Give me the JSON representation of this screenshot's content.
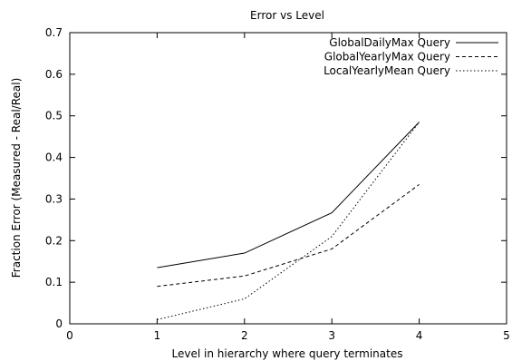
{
  "chart_data": {
    "type": "line",
    "title": "Error vs Level",
    "xlabel": "Level in hierarchy where query terminates",
    "ylabel": "Fraction Error (Measured - Real/Real)",
    "xlim": [
      0,
      5
    ],
    "ylim": [
      0,
      0.7
    ],
    "xticks": [
      "0",
      "1",
      "2",
      "3",
      "4",
      "5"
    ],
    "yticks": [
      "0",
      "0.1",
      "0.2",
      "0.3",
      "0.4",
      "0.5",
      "0.6",
      "0.7"
    ],
    "grid": false,
    "legend_position": "top-right",
    "x": [
      1,
      2,
      3,
      4
    ],
    "series": [
      {
        "name": "GlobalDailyMax Query",
        "style": "solid",
        "values": [
          0.135,
          0.17,
          0.267,
          0.485
        ]
      },
      {
        "name": "GlobalYearlyMax Query",
        "style": "dashed",
        "values": [
          0.09,
          0.115,
          0.18,
          0.335
        ]
      },
      {
        "name": "LocalYearlyMean Query",
        "style": "dotted",
        "values": [
          0.01,
          0.06,
          0.21,
          0.485
        ]
      }
    ]
  }
}
